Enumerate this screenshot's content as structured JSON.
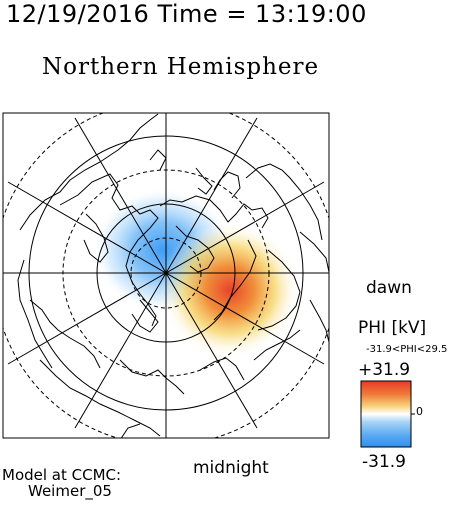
{
  "header": {
    "datetime": "12/19/2016 Time = 13:19:00",
    "hemisphere": "Northern Hemisphere"
  },
  "map": {
    "projection": "polar",
    "labels": {
      "dawn": "dawn",
      "midnight": "midnight"
    },
    "colors": {
      "negative": "#3fa0ff",
      "positive": "#e8432c"
    }
  },
  "colorbar": {
    "title": "PHI [kV]",
    "range_text": "-31.9<PHI<29.5",
    "max_label": "+31.9",
    "zero_label": "0",
    "min_label": "-31.9"
  },
  "footer": {
    "model_line1": "Model at CCMC:",
    "model_line2": "Weimer_05"
  }
}
